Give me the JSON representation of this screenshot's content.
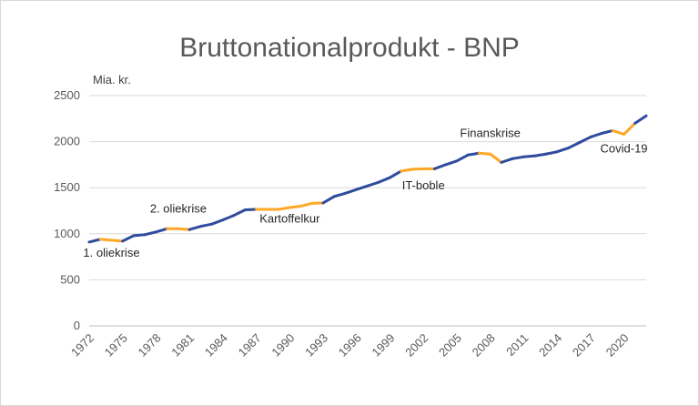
{
  "chart_data": {
    "type": "line",
    "title": "Bruttonationalprodukt - BNP",
    "ylabel": "Mia. kr.",
    "xlabel": "",
    "ylim": [
      0,
      2500
    ],
    "yticks": [
      0,
      500,
      1000,
      1500,
      2000,
      2500
    ],
    "xlim": [
      1972,
      2022
    ],
    "xticks": [
      1972,
      1975,
      1978,
      1981,
      1984,
      1987,
      1990,
      1993,
      1996,
      1999,
      2002,
      2005,
      2008,
      2011,
      2014,
      2017,
      2020
    ],
    "grid": "horizontal",
    "legend": "none",
    "x": [
      1972,
      1973,
      1974,
      1975,
      1976,
      1977,
      1978,
      1979,
      1980,
      1981,
      1982,
      1983,
      1984,
      1985,
      1986,
      1987,
      1988,
      1989,
      1990,
      1991,
      1992,
      1993,
      1994,
      1995,
      1996,
      1997,
      1998,
      1999,
      2000,
      2001,
      2002,
      2003,
      2004,
      2005,
      2006,
      2007,
      2008,
      2009,
      2010,
      2011,
      2012,
      2013,
      2014,
      2015,
      2016,
      2017,
      2018,
      2019,
      2020,
      2021,
      2022
    ],
    "series": [
      {
        "values": [
          910,
          940,
          930,
          920,
          980,
          990,
          1020,
          1055,
          1055,
          1045,
          1080,
          1105,
          1150,
          1200,
          1260,
          1265,
          1265,
          1265,
          1285,
          1300,
          1330,
          1335,
          1405,
          1440,
          1480,
          1520,
          1560,
          1610,
          1680,
          1700,
          1705,
          1705,
          1750,
          1790,
          1855,
          1875,
          1865,
          1775,
          1815,
          1835,
          1845,
          1865,
          1890,
          1930,
          1990,
          2050,
          2090,
          2120,
          2080,
          2200,
          2280
        ],
        "color": "#2f4b9c"
      }
    ],
    "highlight_color": "#ffa726",
    "highlight_ranges": [
      [
        1973,
        1975
      ],
      [
        1979,
        1981
      ],
      [
        1987,
        1993
      ],
      [
        2000,
        2003
      ],
      [
        2007,
        2009
      ],
      [
        2019,
        2021
      ]
    ],
    "annotations": [
      {
        "text": "1. oliekrise",
        "x": 1974,
        "y": 750
      },
      {
        "text": "2. oliekrise",
        "x": 1980,
        "y": 1230
      },
      {
        "text": "Kartoffelkur",
        "x": 1990,
        "y": 1120
      },
      {
        "text": "IT-boble",
        "x": 2002,
        "y": 1480
      },
      {
        "text": "Finanskrise",
        "x": 2008,
        "y": 2050
      },
      {
        "text": "Covid-19",
        "x": 2020,
        "y": 1880
      }
    ]
  }
}
